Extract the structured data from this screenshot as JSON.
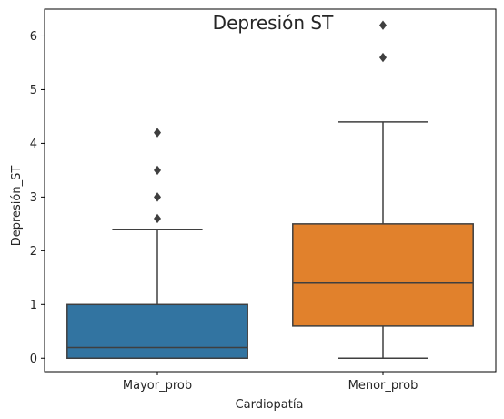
{
  "chart_data": {
    "type": "box",
    "title": "Depresión ST",
    "xlabel": "Cardiopatía",
    "ylabel": "Depresión_ST",
    "ylim": [
      -0.25,
      6.5
    ],
    "yticks": [
      0,
      1,
      2,
      3,
      4,
      5,
      6
    ],
    "grid": false,
    "categories": [
      "Mayor_prob",
      "Menor_prob"
    ],
    "boxes": [
      {
        "category": "Mayor_prob",
        "color": "#3274a1",
        "whisker_low": 0.0,
        "q1": 0.0,
        "median": 0.2,
        "q3": 1.0,
        "whisker_high": 2.4,
        "outliers": [
          2.6,
          3.0,
          3.5,
          4.2
        ]
      },
      {
        "category": "Menor_prob",
        "color": "#e1812c",
        "whisker_low": 0.0,
        "q1": 0.6,
        "median": 1.4,
        "q3": 2.5,
        "whisker_high": 4.4,
        "outliers": [
          5.6,
          6.2
        ]
      }
    ]
  }
}
